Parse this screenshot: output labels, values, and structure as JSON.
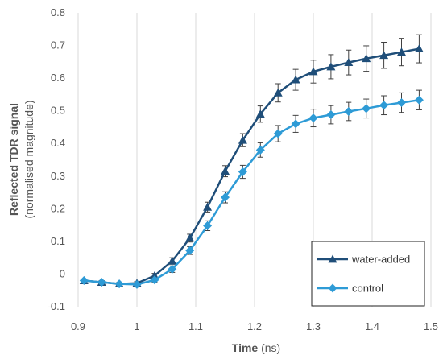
{
  "chart_data": {
    "type": "line",
    "xlabel": {
      "bold": "Time",
      "normal": " (ns)"
    },
    "ylabel": {
      "line1": "Reflected TDR signal",
      "line2": "(normalised magnitude)"
    },
    "xlim": [
      0.9,
      1.5
    ],
    "ylim": [
      -0.1,
      0.8
    ],
    "xticks": [
      "0.9",
      "1",
      "1.1",
      "1.2",
      "1.3",
      "1.4",
      "1.5"
    ],
    "yticks": [
      "-0.1",
      "0",
      "0.1",
      "0.2",
      "0.3",
      "0.4",
      "0.5",
      "0.6",
      "0.7",
      "0.8"
    ],
    "grid": "vertical",
    "legend_position": "bottom-right",
    "x": [
      0.91,
      0.94,
      0.97,
      1.0,
      1.03,
      1.06,
      1.09,
      1.12,
      1.15,
      1.18,
      1.21,
      1.24,
      1.27,
      1.3,
      1.33,
      1.36,
      1.39,
      1.42,
      1.45,
      1.48
    ],
    "series": [
      {
        "name": "water-added",
        "marker": "triangle",
        "color": "#1f4e79",
        "values": [
          -0.02,
          -0.025,
          -0.03,
          -0.028,
          -0.005,
          0.04,
          0.11,
          0.205,
          0.315,
          0.41,
          0.49,
          0.555,
          0.595,
          0.62,
          0.635,
          0.648,
          0.66,
          0.67,
          0.68,
          0.69
        ],
        "errors": [
          0.005,
          0.005,
          0.005,
          0.005,
          0.007,
          0.01,
          0.012,
          0.015,
          0.017,
          0.02,
          0.025,
          0.028,
          0.032,
          0.035,
          0.037,
          0.038,
          0.039,
          0.04,
          0.042,
          0.043
        ]
      },
      {
        "name": "control",
        "marker": "diamond",
        "color": "#2e9bd6",
        "values": [
          -0.02,
          -0.025,
          -0.03,
          -0.032,
          -0.018,
          0.015,
          0.072,
          0.148,
          0.235,
          0.313,
          0.38,
          0.43,
          0.46,
          0.478,
          0.488,
          0.498,
          0.507,
          0.517,
          0.525,
          0.533
        ],
        "errors": [
          0.005,
          0.005,
          0.005,
          0.005,
          0.007,
          0.01,
          0.012,
          0.015,
          0.017,
          0.02,
          0.022,
          0.025,
          0.026,
          0.027,
          0.028,
          0.028,
          0.029,
          0.029,
          0.03,
          0.03
        ]
      }
    ]
  }
}
